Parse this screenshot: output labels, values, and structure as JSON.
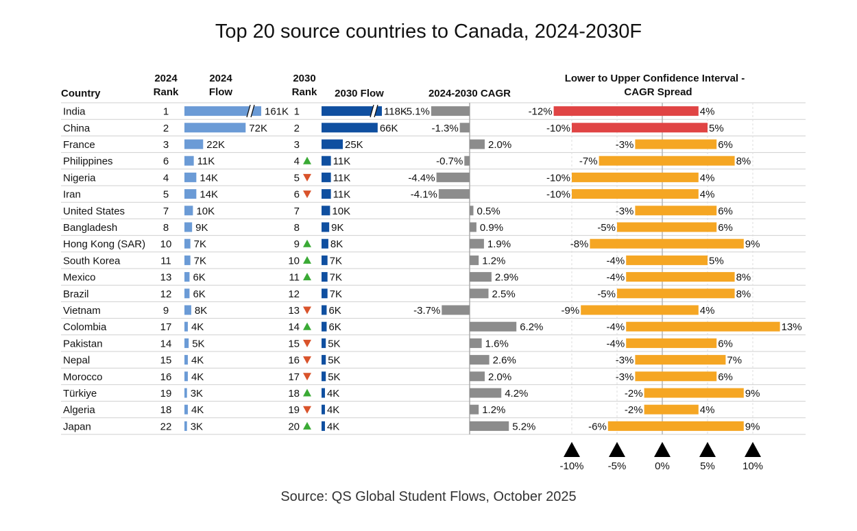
{
  "title": "Top 20 source countries to Canada, 2024-2030F",
  "source": "Source: QS Global Student Flows, October 2025",
  "colors": {
    "flow2024": "#6b9bd6",
    "flow2030": "#0f4fa0",
    "cagr": "#8c8c8c",
    "ci_negative": "#e04444",
    "ci_positive": "#f5a623",
    "arrow_up": "#3aaa35",
    "arrow_down": "#d9532b",
    "grid": "#cfcfcf",
    "axis_marker": "#000000"
  },
  "headers": {
    "country": "Country",
    "rank2024_line1": "2024",
    "rank2024_line2": "Rank",
    "flow2024_line1": "2024",
    "flow2024_line2": "Flow",
    "rank2030_line1": "2030",
    "rank2030_line2": "Rank",
    "flow2030": "2030 Flow",
    "cagr": "2024-2030 CAGR",
    "ci_line1": "Lower to Upper Confidence Interval -",
    "ci_line2": "CAGR Spread"
  },
  "chart_data": {
    "type": "table",
    "flow_unit": "K",
    "flow_axis_max_k": 72,
    "cagr_axis_range": [
      -6,
      7
    ],
    "ci_axis_range": [
      -15,
      15
    ],
    "ci_axis_ticks": [
      -10,
      -5,
      0,
      5,
      10
    ],
    "ci_axis_tick_labels": [
      "-10%",
      "-5%",
      "0%",
      "5%",
      "10%"
    ],
    "rows": [
      {
        "country": "India",
        "rank2024": "1",
        "flow2024": 161,
        "flow2024_label": "161K",
        "flow2024_broken": true,
        "rank2030": "1",
        "trend": "",
        "flow2030": 118,
        "flow2030_label": "118K",
        "flow2030_broken": true,
        "cagr": -5.1,
        "cagr_label": "-5.1%",
        "ci_low": -12,
        "ci_high": 4,
        "ci_low_label": "-12%",
        "ci_high_label": "4%",
        "ci_color": "negative"
      },
      {
        "country": "China",
        "rank2024": "2",
        "flow2024": 72,
        "flow2024_label": "72K",
        "flow2024_broken": false,
        "rank2030": "2",
        "trend": "",
        "flow2030": 66,
        "flow2030_label": "66K",
        "flow2030_broken": false,
        "cagr": -1.3,
        "cagr_label": "-1.3%",
        "ci_low": -10,
        "ci_high": 5,
        "ci_low_label": "-10%",
        "ci_high_label": "5%",
        "ci_color": "negative"
      },
      {
        "country": "France",
        "rank2024": "3",
        "flow2024": 22,
        "flow2024_label": "22K",
        "flow2024_broken": false,
        "rank2030": "3",
        "trend": "",
        "flow2030": 25,
        "flow2030_label": "25K",
        "flow2030_broken": false,
        "cagr": 2.0,
        "cagr_label": "2.0%",
        "ci_low": -3,
        "ci_high": 6,
        "ci_low_label": "-3%",
        "ci_high_label": "6%",
        "ci_color": "positive"
      },
      {
        "country": "Philippines",
        "rank2024": "6",
        "flow2024": 11,
        "flow2024_label": "11K",
        "flow2024_broken": false,
        "rank2030": "4",
        "trend": "up",
        "flow2030": 11,
        "flow2030_label": "11K",
        "flow2030_broken": false,
        "cagr": -0.7,
        "cagr_label": "-0.7%",
        "ci_low": -7,
        "ci_high": 8,
        "ci_low_label": "-7%",
        "ci_high_label": "8%",
        "ci_color": "positive"
      },
      {
        "country": "Nigeria",
        "rank2024": "4",
        "flow2024": 14,
        "flow2024_label": "14K",
        "flow2024_broken": false,
        "rank2030": "5",
        "trend": "down",
        "flow2030": 11,
        "flow2030_label": "11K",
        "flow2030_broken": false,
        "cagr": -4.4,
        "cagr_label": "-4.4%",
        "ci_low": -10,
        "ci_high": 4,
        "ci_low_label": "-10%",
        "ci_high_label": "4%",
        "ci_color": "positive"
      },
      {
        "country": "Iran",
        "rank2024": "5",
        "flow2024": 14,
        "flow2024_label": "14K",
        "flow2024_broken": false,
        "rank2030": "6",
        "trend": "down",
        "flow2030": 11,
        "flow2030_label": "11K",
        "flow2030_broken": false,
        "cagr": -4.1,
        "cagr_label": "-4.1%",
        "ci_low": -10,
        "ci_high": 4,
        "ci_low_label": "-10%",
        "ci_high_label": "4%",
        "ci_color": "positive"
      },
      {
        "country": "United States",
        "rank2024": "7",
        "flow2024": 10,
        "flow2024_label": "10K",
        "flow2024_broken": false,
        "rank2030": "7",
        "trend": "",
        "flow2030": 10,
        "flow2030_label": "10K",
        "flow2030_broken": false,
        "cagr": 0.5,
        "cagr_label": "0.5%",
        "ci_low": -3,
        "ci_high": 6,
        "ci_low_label": "-3%",
        "ci_high_label": "6%",
        "ci_color": "positive"
      },
      {
        "country": "Bangladesh",
        "rank2024": "8",
        "flow2024": 9,
        "flow2024_label": "9K",
        "flow2024_broken": false,
        "rank2030": "8",
        "trend": "",
        "flow2030": 9,
        "flow2030_label": "9K",
        "flow2030_broken": false,
        "cagr": 0.9,
        "cagr_label": "0.9%",
        "ci_low": -5,
        "ci_high": 6,
        "ci_low_label": "-5%",
        "ci_high_label": "6%",
        "ci_color": "positive"
      },
      {
        "country": "Hong Kong (SAR)",
        "rank2024": "10",
        "flow2024": 7,
        "flow2024_label": "7K",
        "flow2024_broken": false,
        "rank2030": "9",
        "trend": "up",
        "flow2030": 8,
        "flow2030_label": "8K",
        "flow2030_broken": false,
        "cagr": 1.9,
        "cagr_label": "1.9%",
        "ci_low": -8,
        "ci_high": 9,
        "ci_low_label": "-8%",
        "ci_high_label": "9%",
        "ci_color": "positive"
      },
      {
        "country": "South Korea",
        "rank2024": "11",
        "flow2024": 7,
        "flow2024_label": "7K",
        "flow2024_broken": false,
        "rank2030": "10",
        "trend": "up",
        "flow2030": 7,
        "flow2030_label": "7K",
        "flow2030_broken": false,
        "cagr": 1.2,
        "cagr_label": "1.2%",
        "ci_low": -4,
        "ci_high": 5,
        "ci_low_label": "-4%",
        "ci_high_label": "5%",
        "ci_color": "positive"
      },
      {
        "country": "Mexico",
        "rank2024": "13",
        "flow2024": 6,
        "flow2024_label": "6K",
        "flow2024_broken": false,
        "rank2030": "11",
        "trend": "up",
        "flow2030": 7,
        "flow2030_label": "7K",
        "flow2030_broken": false,
        "cagr": 2.9,
        "cagr_label": "2.9%",
        "ci_low": -4,
        "ci_high": 8,
        "ci_low_label": "-4%",
        "ci_high_label": "8%",
        "ci_color": "positive"
      },
      {
        "country": "Brazil",
        "rank2024": "12",
        "flow2024": 6,
        "flow2024_label": "6K",
        "flow2024_broken": false,
        "rank2030": "12",
        "trend": "",
        "flow2030": 7,
        "flow2030_label": "7K",
        "flow2030_broken": false,
        "cagr": 2.5,
        "cagr_label": "2.5%",
        "ci_low": -5,
        "ci_high": 8,
        "ci_low_label": "-5%",
        "ci_high_label": "8%",
        "ci_color": "positive"
      },
      {
        "country": "Vietnam",
        "rank2024": "9",
        "flow2024": 8,
        "flow2024_label": "8K",
        "flow2024_broken": false,
        "rank2030": "13",
        "trend": "down",
        "flow2030": 6,
        "flow2030_label": "6K",
        "flow2030_broken": false,
        "cagr": -3.7,
        "cagr_label": "-3.7%",
        "ci_low": -9,
        "ci_high": 4,
        "ci_low_label": "-9%",
        "ci_high_label": "4%",
        "ci_color": "positive"
      },
      {
        "country": "Colombia",
        "rank2024": "17",
        "flow2024": 4,
        "flow2024_label": "4K",
        "flow2024_broken": false,
        "rank2030": "14",
        "trend": "up",
        "flow2030": 6,
        "flow2030_label": "6K",
        "flow2030_broken": false,
        "cagr": 6.2,
        "cagr_label": "6.2%",
        "ci_low": -4,
        "ci_high": 13,
        "ci_low_label": "-4%",
        "ci_high_label": "13%",
        "ci_color": "positive"
      },
      {
        "country": "Pakistan",
        "rank2024": "14",
        "flow2024": 5,
        "flow2024_label": "5K",
        "flow2024_broken": false,
        "rank2030": "15",
        "trend": "down",
        "flow2030": 5,
        "flow2030_label": "5K",
        "flow2030_broken": false,
        "cagr": 1.6,
        "cagr_label": "1.6%",
        "ci_low": -4,
        "ci_high": 6,
        "ci_low_label": "-4%",
        "ci_high_label": "6%",
        "ci_color": "positive"
      },
      {
        "country": "Nepal",
        "rank2024": "15",
        "flow2024": 4,
        "flow2024_label": "4K",
        "flow2024_broken": false,
        "rank2030": "16",
        "trend": "down",
        "flow2030": 5,
        "flow2030_label": "5K",
        "flow2030_broken": false,
        "cagr": 2.6,
        "cagr_label": "2.6%",
        "ci_low": -3,
        "ci_high": 7,
        "ci_low_label": "-3%",
        "ci_high_label": "7%",
        "ci_color": "positive"
      },
      {
        "country": "Morocco",
        "rank2024": "16",
        "flow2024": 4,
        "flow2024_label": "4K",
        "flow2024_broken": false,
        "rank2030": "17",
        "trend": "down",
        "flow2030": 5,
        "flow2030_label": "5K",
        "flow2030_broken": false,
        "cagr": 2.0,
        "cagr_label": "2.0%",
        "ci_low": -3,
        "ci_high": 6,
        "ci_low_label": "-3%",
        "ci_high_label": "6%",
        "ci_color": "positive"
      },
      {
        "country": "Türkiye",
        "rank2024": "19",
        "flow2024": 3,
        "flow2024_label": "3K",
        "flow2024_broken": false,
        "rank2030": "18",
        "trend": "up",
        "flow2030": 4,
        "flow2030_label": "4K",
        "flow2030_broken": false,
        "cagr": 4.2,
        "cagr_label": "4.2%",
        "ci_low": -2,
        "ci_high": 9,
        "ci_low_label": "-2%",
        "ci_high_label": "9%",
        "ci_color": "positive"
      },
      {
        "country": "Algeria",
        "rank2024": "18",
        "flow2024": 4,
        "flow2024_label": "4K",
        "flow2024_broken": false,
        "rank2030": "19",
        "trend": "down",
        "flow2030": 4,
        "flow2030_label": "4K",
        "flow2030_broken": false,
        "cagr": 1.2,
        "cagr_label": "1.2%",
        "ci_low": -2,
        "ci_high": 4,
        "ci_low_label": "-2%",
        "ci_high_label": "4%",
        "ci_color": "positive"
      },
      {
        "country": "Japan",
        "rank2024": "22",
        "flow2024": 3,
        "flow2024_label": "3K",
        "flow2024_broken": false,
        "rank2030": "20",
        "trend": "up",
        "flow2030": 4,
        "flow2030_label": "4K",
        "flow2030_broken": false,
        "cagr": 5.2,
        "cagr_label": "5.2%",
        "ci_low": -6,
        "ci_high": 9,
        "ci_low_label": "-6%",
        "ci_high_label": "9%",
        "ci_color": "positive"
      }
    ]
  }
}
